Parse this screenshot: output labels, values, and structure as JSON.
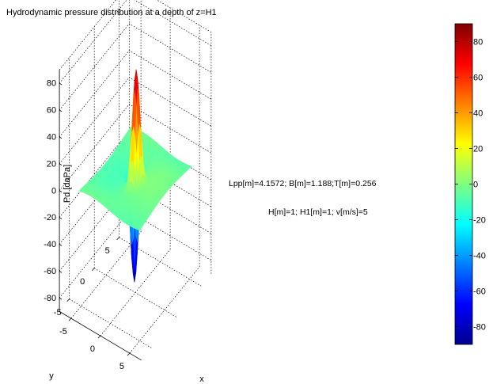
{
  "chart_data": {
    "type": "surface3d",
    "title": "Hydrodynamic pressure distribution at a depth of z=H1",
    "zlabel": "Pd [daPa]",
    "xlabel": "x",
    "ylabel": "y",
    "z_ticks": [
      "80",
      "60",
      "40",
      "20",
      "0",
      "-20",
      "-40",
      "-60",
      "-80"
    ],
    "x_ticks": [
      "-5",
      "0",
      "5"
    ],
    "y_ticks": [
      "5",
      "0",
      "-5"
    ],
    "zlim": [
      -90,
      90
    ],
    "xlim": [
      -7,
      7
    ],
    "ylim": [
      -7,
      7
    ],
    "surface": {
      "base_level": -5,
      "peak": {
        "x": 1,
        "y": -1,
        "value": 82
      },
      "trough": {
        "x": -1,
        "y": 1,
        "value": -88
      }
    },
    "annotations": [
      "Lpp[m]=4.1572; B[m]=1.188;T[m]=0.256",
      "H[m]=1; H1[m]=1; v[m/s]=5"
    ],
    "colorbar": {
      "colormap": "jet",
      "range": [
        -90,
        90
      ],
      "ticks": [
        "80",
        "60",
        "40",
        "20",
        "0",
        "-20",
        "-40",
        "-60",
        "-80"
      ]
    }
  }
}
